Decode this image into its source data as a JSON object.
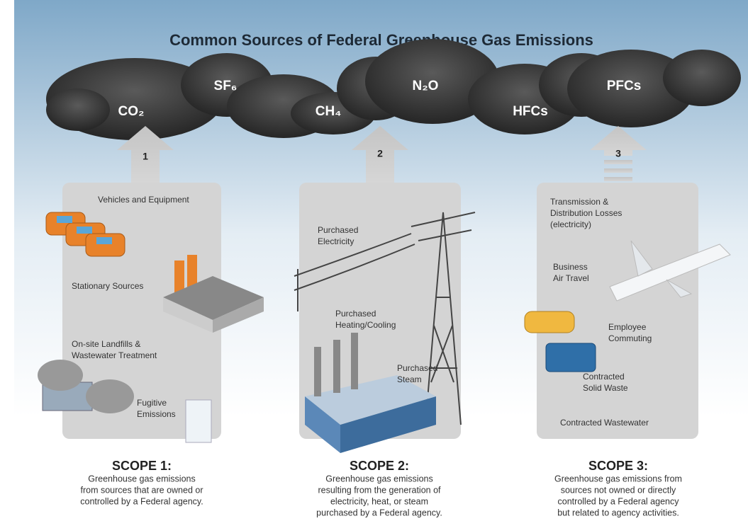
{
  "title": "Common Sources of Federal Greenhouse Gas Emissions",
  "gases": [
    "CO₂",
    "SF₆",
    "CH₄",
    "N₂O",
    "HFCs",
    "PFCs"
  ],
  "scopes": [
    {
      "number": "1",
      "heading": "SCOPE 1:",
      "description": [
        "Greenhouse gas emissions",
        "from sources that are owned or",
        "controlled by a Federal agency."
      ],
      "items": [
        {
          "lines": [
            "Vehicles and Equipment"
          ]
        },
        {
          "lines": [
            "Stationary Sources"
          ]
        },
        {
          "lines": [
            "On-site Landfills &",
            "Wastewater Treatment"
          ]
        },
        {
          "lines": [
            "Fugitive",
            "Emissions"
          ]
        }
      ]
    },
    {
      "number": "2",
      "heading": "SCOPE 2:",
      "description": [
        "Greenhouse gas emissions",
        "resulting from the generation of",
        "electricity, heat, or steam",
        "purchased by a Federal agency."
      ],
      "items": [
        {
          "lines": [
            "Purchased",
            "Electricity"
          ]
        },
        {
          "lines": [
            "Purchased",
            "Heating/Cooling"
          ]
        },
        {
          "lines": [
            "Purchased",
            "Steam"
          ]
        }
      ]
    },
    {
      "number": "3",
      "heading": "SCOPE 3:",
      "description": [
        "Greenhouse gas emissions from",
        "sources not owned or directly",
        "controlled by a Federal agency",
        "but related to agency activities."
      ],
      "items": [
        {
          "lines": [
            "Transmission &",
            "Distribution Losses",
            "(electricity)"
          ]
        },
        {
          "lines": [
            "Business",
            "Air Travel"
          ]
        },
        {
          "lines": [
            "Employee",
            "Commuting"
          ]
        },
        {
          "lines": [
            "Contracted",
            "Solid Waste"
          ]
        },
        {
          "lines": [
            "Contracted Wastewater"
          ]
        }
      ]
    }
  ]
}
